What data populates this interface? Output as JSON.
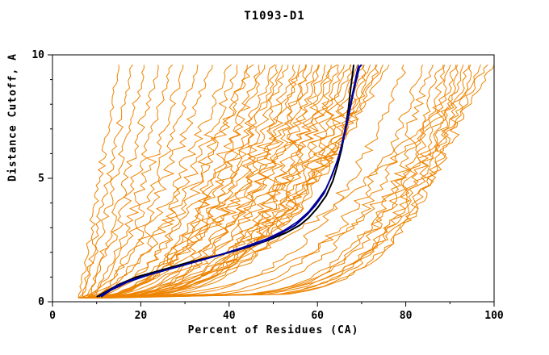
{
  "chart_data": {
    "type": "line",
    "title": "T1093-D1",
    "xlabel": "Percent of Residues (CA)",
    "ylabel": "Distance Cutoff, A",
    "xlim": [
      0,
      100
    ],
    "ylim": [
      0,
      10
    ],
    "x_ticks": [
      0,
      20,
      40,
      60,
      80,
      100
    ],
    "x_minor_ticks": [
      10,
      30,
      50,
      70,
      90
    ],
    "y_ticks": [
      0,
      5,
      10
    ],
    "y_minor_ticks": [
      1,
      2,
      3,
      4,
      6,
      7,
      8,
      9
    ],
    "grid": false,
    "legend_position": "none",
    "colors": {
      "model_line": "#ee8400",
      "highlight_line": "#000099",
      "best_line": "#000000",
      "axis": "#000000",
      "text": "#000000"
    },
    "curve_y_start": 0.15,
    "curve_y_end": 9.6,
    "highlight_curves": [
      {
        "name": "best-model-black",
        "color": "#000000",
        "width": 2,
        "points": [
          [
            10,
            0.2
          ],
          [
            12,
            0.4
          ],
          [
            15,
            0.7
          ],
          [
            19,
            1.0
          ],
          [
            25,
            1.3
          ],
          [
            31,
            1.6
          ],
          [
            38,
            1.9
          ],
          [
            44,
            2.2
          ],
          [
            49,
            2.5
          ],
          [
            53,
            2.8
          ],
          [
            56,
            3.1
          ],
          [
            58,
            3.4
          ],
          [
            60,
            3.8
          ],
          [
            62,
            4.3
          ],
          [
            63.5,
            4.9
          ],
          [
            64.5,
            5.5
          ],
          [
            65.5,
            6.2
          ],
          [
            66.3,
            7.0
          ],
          [
            67,
            7.8
          ],
          [
            67.5,
            8.6
          ],
          [
            68,
            9.3
          ],
          [
            68.2,
            9.6
          ]
        ]
      },
      {
        "name": "highlight-navy-1",
        "color": "#000099",
        "width": 2,
        "points": [
          [
            11,
            0.2
          ],
          [
            13,
            0.45
          ],
          [
            17,
            0.8
          ],
          [
            22,
            1.1
          ],
          [
            28,
            1.4
          ],
          [
            35,
            1.75
          ],
          [
            42,
            2.1
          ],
          [
            48,
            2.45
          ],
          [
            52,
            2.8
          ],
          [
            55,
            3.1
          ],
          [
            57.5,
            3.5
          ],
          [
            59.5,
            3.9
          ],
          [
            61.5,
            4.4
          ],
          [
            63,
            5.0
          ],
          [
            64.5,
            5.7
          ],
          [
            65.8,
            6.5
          ],
          [
            66.8,
            7.3
          ],
          [
            67.8,
            8.2
          ],
          [
            68.8,
            9.0
          ],
          [
            69.5,
            9.5
          ],
          [
            70,
            9.6
          ]
        ]
      },
      {
        "name": "highlight-navy-2",
        "color": "#000099",
        "width": 1.5,
        "points": [
          [
            10.5,
            0.2
          ],
          [
            14,
            0.6
          ],
          [
            18,
            0.9
          ],
          [
            24,
            1.2
          ],
          [
            30,
            1.5
          ],
          [
            37,
            1.85
          ],
          [
            43,
            2.2
          ],
          [
            48.5,
            2.55
          ],
          [
            52.5,
            2.9
          ],
          [
            55.5,
            3.25
          ],
          [
            58,
            3.65
          ],
          [
            60,
            4.1
          ],
          [
            62,
            4.6
          ],
          [
            63.5,
            5.2
          ],
          [
            65,
            6.0
          ],
          [
            66,
            6.8
          ],
          [
            67,
            7.6
          ],
          [
            68,
            8.5
          ],
          [
            68.8,
            9.2
          ],
          [
            69.3,
            9.6
          ]
        ]
      }
    ],
    "model_curves": [
      {
        "xs": 6,
        "xe": 15,
        "shape": 1.05,
        "noise": 0.8,
        "seed": 1
      },
      {
        "xs": 7,
        "xe": 18,
        "shape": 1.0,
        "noise": 1.0,
        "seed": 2
      },
      {
        "xs": 6,
        "xe": 21,
        "shape": 1.15,
        "noise": 1.0,
        "seed": 3
      },
      {
        "xs": 8,
        "xe": 24,
        "shape": 1.1,
        "noise": 1.2,
        "seed": 4
      },
      {
        "xs": 7,
        "xe": 27,
        "shape": 1.25,
        "noise": 1.1,
        "seed": 5
      },
      {
        "xs": 9,
        "xe": 30,
        "shape": 1.2,
        "noise": 1.3,
        "seed": 6
      },
      {
        "xs": 8,
        "xe": 33,
        "shape": 1.35,
        "noise": 1.1,
        "seed": 7
      },
      {
        "xs": 10,
        "xe": 36,
        "shape": 1.3,
        "noise": 1.4,
        "seed": 8
      },
      {
        "xs": 6,
        "xe": 40,
        "shape": 1.6,
        "noise": 1.5,
        "seed": 9
      },
      {
        "xs": 7,
        "xe": 42,
        "shape": 1.8,
        "noise": 1.6,
        "seed": 10
      },
      {
        "xs": 8,
        "xe": 44,
        "shape": 2.0,
        "noise": 1.4,
        "seed": 11
      },
      {
        "xs": 6,
        "xe": 45,
        "shape": 1.7,
        "noise": 1.8,
        "seed": 12
      },
      {
        "xs": 9,
        "xe": 47,
        "shape": 2.2,
        "noise": 1.5,
        "seed": 13
      },
      {
        "xs": 7,
        "xe": 48,
        "shape": 1.9,
        "noise": 1.7,
        "seed": 14
      },
      {
        "xs": 8,
        "xe": 50,
        "shape": 2.1,
        "noise": 1.6,
        "seed": 15
      },
      {
        "xs": 6,
        "xe": 51,
        "shape": 2.4,
        "noise": 1.5,
        "seed": 16
      },
      {
        "xs": 10,
        "xe": 52,
        "shape": 1.8,
        "noise": 1.8,
        "seed": 17
      },
      {
        "xs": 7,
        "xe": 53,
        "shape": 2.3,
        "noise": 1.6,
        "seed": 18
      },
      {
        "xs": 9,
        "xe": 55,
        "shape": 2.0,
        "noise": 1.7,
        "seed": 19
      },
      {
        "xs": 8,
        "xe": 56,
        "shape": 2.5,
        "noise": 1.5,
        "seed": 20
      },
      {
        "xs": 6,
        "xe": 57,
        "shape": 2.2,
        "noise": 1.9,
        "seed": 21
      },
      {
        "xs": 10,
        "xe": 58,
        "shape": 2.6,
        "noise": 1.6,
        "seed": 22
      },
      {
        "xs": 7,
        "xe": 59,
        "shape": 2.1,
        "noise": 1.8,
        "seed": 23
      },
      {
        "xs": 9,
        "xe": 60,
        "shape": 2.4,
        "noise": 1.5,
        "seed": 24
      },
      {
        "xs": 8,
        "xe": 61,
        "shape": 2.7,
        "noise": 1.7,
        "seed": 25
      },
      {
        "xs": 6,
        "xe": 62,
        "shape": 2.3,
        "noise": 1.8,
        "seed": 26
      },
      {
        "xs": 11,
        "xe": 63,
        "shape": 2.8,
        "noise": 1.6,
        "seed": 27
      },
      {
        "xs": 7,
        "xe": 64,
        "shape": 2.5,
        "noise": 1.9,
        "seed": 28
      },
      {
        "xs": 9,
        "xe": 65,
        "shape": 2.9,
        "noise": 1.5,
        "seed": 29
      },
      {
        "xs": 8,
        "xe": 66,
        "shape": 2.6,
        "noise": 1.7,
        "seed": 30
      },
      {
        "xs": 10,
        "xe": 67,
        "shape": 3.0,
        "noise": 1.6,
        "seed": 31
      },
      {
        "xs": 7,
        "xe": 68,
        "shape": 2.7,
        "noise": 1.8,
        "seed": 32
      },
      {
        "xs": 9,
        "xe": 69,
        "shape": 3.1,
        "noise": 1.5,
        "seed": 33
      },
      {
        "xs": 8,
        "xe": 70,
        "shape": 2.8,
        "noise": 1.7,
        "seed": 34
      },
      {
        "xs": 11,
        "xe": 71,
        "shape": 3.2,
        "noise": 1.6,
        "seed": 35
      },
      {
        "xs": 7,
        "xe": 72,
        "shape": 2.9,
        "noise": 1.8,
        "seed": 36
      },
      {
        "xs": 9,
        "xe": 73,
        "shape": 3.0,
        "noise": 1.5,
        "seed": 37
      },
      {
        "xs": 10,
        "xe": 74,
        "shape": 2.6,
        "noise": 1.7,
        "seed": 38
      },
      {
        "xs": 8,
        "xe": 75,
        "shape": 2.4,
        "noise": 1.9,
        "seed": 39
      },
      {
        "xs": 12,
        "xe": 76,
        "shape": 2.2,
        "noise": 1.6,
        "seed": 40
      },
      {
        "xs": 9,
        "xe": 80,
        "shape": 3.6,
        "noise": 1.5,
        "seed": 41
      },
      {
        "xs": 10,
        "xe": 84,
        "shape": 4.0,
        "noise": 1.6,
        "seed": 42
      },
      {
        "xs": 8,
        "xe": 86,
        "shape": 4.5,
        "noise": 1.4,
        "seed": 43
      },
      {
        "xs": 11,
        "xe": 88,
        "shape": 5.0,
        "noise": 1.5,
        "seed": 44
      },
      {
        "xs": 9,
        "xe": 89,
        "shape": 5.5,
        "noise": 1.3,
        "seed": 45
      },
      {
        "xs": 10,
        "xe": 90,
        "shape": 5.0,
        "noise": 1.6,
        "seed": 46
      },
      {
        "xs": 12,
        "xe": 91,
        "shape": 5.8,
        "noise": 1.4,
        "seed": 47
      },
      {
        "xs": 9,
        "xe": 92,
        "shape": 6.0,
        "noise": 1.5,
        "seed": 48
      },
      {
        "xs": 11,
        "xe": 93,
        "shape": 5.2,
        "noise": 1.3,
        "seed": 49
      },
      {
        "xs": 10,
        "xe": 94,
        "shape": 6.2,
        "noise": 1.5,
        "seed": 50
      },
      {
        "xs": 13,
        "xe": 95,
        "shape": 5.6,
        "noise": 1.4,
        "seed": 51
      },
      {
        "xs": 9,
        "xe": 97,
        "shape": 4.8,
        "noise": 1.5,
        "seed": 52
      },
      {
        "xs": 10,
        "xe": 100,
        "shape": 2.6,
        "noise": 1.4,
        "seed": 53
      },
      {
        "xs": 8,
        "xe": 99,
        "shape": 1.9,
        "noise": 1.5,
        "seed": 54
      }
    ]
  }
}
